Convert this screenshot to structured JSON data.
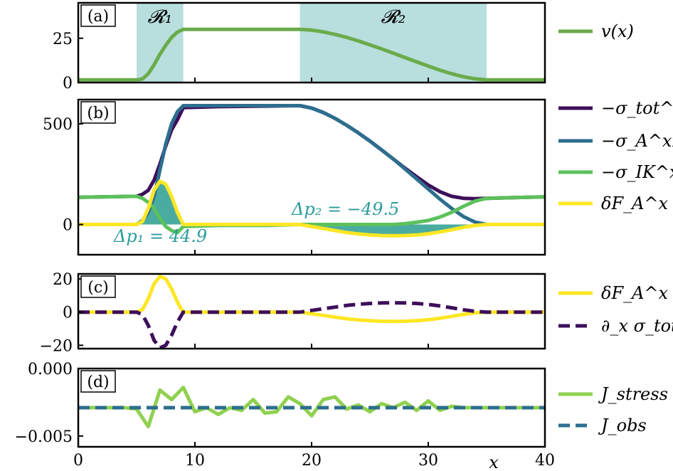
{
  "chart_data": [
    {
      "panel": "(a)",
      "type": "line",
      "ylim": [
        0,
        45
      ],
      "yticks": [
        0,
        25
      ],
      "ytick_labels": [
        "0",
        "25"
      ],
      "regions": [
        {
          "label": "𝓡₁",
          "x_range": [
            5,
            9
          ]
        },
        {
          "label": "𝓡₂",
          "x_range": [
            19,
            35
          ]
        }
      ],
      "region_color": "#b8dede",
      "series": [
        {
          "name": "v(x)",
          "color": "#6aab4a",
          "x": [
            0,
            5,
            5.5,
            6,
            6.5,
            7,
            7.5,
            8,
            8.5,
            9,
            12,
            16,
            19,
            20,
            21,
            22,
            23,
            24,
            25,
            26,
            27,
            28,
            29,
            30,
            31,
            32,
            33,
            34,
            35,
            37,
            40
          ],
          "values": [
            1.5,
            1.5,
            2,
            5,
            10,
            16,
            21,
            25.5,
            28.5,
            30,
            30,
            30,
            30,
            29.6,
            28.6,
            27.2,
            25.5,
            23.5,
            21.3,
            19,
            16.6,
            14.1,
            11.7,
            9.3,
            7.0,
            5.0,
            3.3,
            2.1,
            1.5,
            1.5,
            1.5
          ]
        }
      ]
    },
    {
      "panel": "(b)",
      "type": "line",
      "ylim": [
        -150,
        620
      ],
      "yticks": [
        0,
        500
      ],
      "ytick_labels": [
        "0",
        "500"
      ],
      "series": [
        {
          "name": "−σ_tot^xx",
          "color": "#3d0f5a",
          "x": [
            0,
            5,
            5.5,
            6,
            6.5,
            7,
            7.5,
            8,
            8.5,
            9,
            12,
            16,
            19,
            20,
            21,
            22,
            23,
            24,
            25,
            26,
            27,
            28,
            29,
            30,
            31,
            32,
            33,
            34,
            35,
            37,
            40
          ],
          "values": [
            135,
            140,
            150,
            170,
            220,
            300,
            390,
            470,
            520,
            580,
            585,
            588,
            590,
            578,
            556,
            527,
            493,
            455,
            414,
            370,
            325,
            280,
            237,
            196,
            163,
            140,
            130,
            128,
            130,
            133,
            137
          ]
        },
        {
          "name": "−σ_A^xx",
          "color": "#2d6e8e",
          "x": [
            0,
            5,
            5.5,
            6,
            6.5,
            7,
            7.5,
            8,
            8.5,
            9,
            12,
            16,
            19,
            20,
            21,
            22,
            23,
            24,
            25,
            26,
            27,
            28,
            29,
            30,
            31,
            32,
            33,
            34,
            35,
            37,
            40
          ],
          "values": [
            0,
            0,
            20,
            60,
            140,
            270,
            400,
            500,
            560,
            590,
            590,
            590,
            590,
            578,
            556,
            527,
            493,
            455,
            414,
            370,
            325,
            276,
            226,
            176,
            126,
            80,
            40,
            12,
            0,
            0,
            0
          ]
        },
        {
          "name": "−σ_IK^xx",
          "color": "#5cc15b",
          "x": [
            0,
            5,
            5.5,
            6,
            6.5,
            7,
            7.5,
            8,
            8.5,
            9,
            12,
            16,
            19,
            20,
            21,
            22,
            23,
            24,
            25,
            26,
            27,
            28,
            29,
            30,
            31,
            32,
            33,
            34,
            35,
            37,
            40
          ],
          "values": [
            135,
            140,
            130,
            110,
            80,
            30,
            -10,
            -30,
            -40,
            -10,
            -5,
            -5,
            0,
            0,
            0,
            0,
            0,
            0,
            0,
            0,
            0,
            4,
            11,
            20,
            37,
            60,
            90,
            116,
            130,
            133,
            137
          ]
        },
        {
          "name": "δF_A^x",
          "color": "#fde725",
          "x": [
            0,
            5,
            5.5,
            6,
            6.5,
            7,
            7.5,
            8,
            8.5,
            9,
            12,
            16,
            19,
            20,
            21,
            22,
            23,
            24,
            25,
            26,
            27,
            28,
            29,
            30,
            31,
            32,
            33,
            34,
            35,
            37,
            40
          ],
          "values": [
            0,
            0,
            15,
            80,
            170,
            215,
            200,
            140,
            60,
            0,
            0,
            0,
            0,
            -10,
            -20,
            -30,
            -40,
            -47,
            -52,
            -55,
            -56,
            -55,
            -52,
            -46,
            -37,
            -26,
            -14,
            -5,
            0,
            0,
            0
          ]
        }
      ],
      "annotations": [
        {
          "text": "Δp₁ = 44.9"
        },
        {
          "text": "Δp₂ = −49.5"
        }
      ],
      "fill_color": "#2a9d8f"
    },
    {
      "panel": "(c)",
      "type": "line",
      "ylim": [
        -22,
        23
      ],
      "yticks": [
        -20,
        0,
        20
      ],
      "ytick_labels": [
        "−20",
        "0",
        "20"
      ],
      "series": [
        {
          "name": "δF_A^x",
          "color": "#fde725",
          "x": [
            0,
            5,
            5.5,
            6,
            6.5,
            7,
            7.5,
            8,
            8.5,
            9,
            12,
            16,
            19,
            20,
            21,
            22,
            23,
            24,
            25,
            26,
            27,
            28,
            29,
            30,
            31,
            32,
            33,
            34,
            35,
            37,
            40
          ],
          "values": [
            0,
            0,
            1.5,
            8,
            17,
            21.5,
            20,
            14,
            6,
            0,
            0,
            0,
            0,
            -1,
            -2,
            -3,
            -4,
            -4.7,
            -5.2,
            -5.5,
            -5.6,
            -5.5,
            -5.2,
            -4.6,
            -3.7,
            -2.6,
            -1.4,
            -0.5,
            0,
            0,
            0
          ]
        },
        {
          "name": "∂_x σ_tot^xx",
          "color": "#3d0f5a",
          "dashed": true,
          "x": [
            0,
            5,
            5.5,
            6,
            6.5,
            7,
            7.5,
            8,
            8.5,
            9,
            12,
            16,
            19,
            20,
            21,
            22,
            23,
            24,
            25,
            26,
            27,
            28,
            29,
            30,
            31,
            32,
            33,
            34,
            35,
            37,
            40
          ],
          "values": [
            0,
            0,
            -1.5,
            -8,
            -17,
            -21.5,
            -20,
            -14,
            -6,
            0,
            0,
            0,
            0,
            1,
            2,
            3,
            4,
            4.7,
            5.2,
            5.5,
            5.6,
            5.5,
            5.2,
            4.6,
            3.7,
            2.6,
            1.4,
            0.5,
            0,
            0,
            0
          ]
        }
      ]
    },
    {
      "panel": "(d)",
      "type": "line",
      "ylim": [
        -0.0058,
        0.0
      ],
      "yticks": [
        -0.005,
        0.0
      ],
      "ytick_labels": [
        "−0.005",
        "0.000"
      ],
      "series": [
        {
          "name": "J_stress",
          "color": "#8fd14f",
          "x": [
            0,
            1,
            2,
            3,
            4,
            5,
            6,
            7,
            8,
            9,
            10,
            11,
            12,
            13,
            14,
            15,
            16,
            17,
            18,
            19,
            20,
            21,
            22,
            23,
            24,
            25,
            26,
            27,
            28,
            29,
            30,
            31,
            32,
            33,
            34,
            35,
            36,
            37,
            38,
            39,
            40
          ],
          "values": [
            -0.0029,
            -0.0029,
            -0.0029,
            -0.0029,
            -0.0029,
            -0.003,
            -0.0043,
            -0.0016,
            -0.0023,
            -0.0014,
            -0.0032,
            -0.0029,
            -0.0034,
            -0.0029,
            -0.0031,
            -0.0023,
            -0.0033,
            -0.0032,
            -0.0021,
            -0.0026,
            -0.0035,
            -0.0023,
            -0.0021,
            -0.003,
            -0.0027,
            -0.0032,
            -0.0026,
            -0.0029,
            -0.0025,
            -0.0031,
            -0.0024,
            -0.0031,
            -0.0028,
            -0.0029,
            -0.0029,
            -0.0029,
            -0.0029,
            -0.0029,
            -0.0029,
            -0.0029,
            -0.0029
          ]
        },
        {
          "name": "J_obs",
          "color": "#2d6e8e",
          "dashed": true,
          "x": [
            0,
            40
          ],
          "values": [
            -0.0029,
            -0.0029
          ]
        }
      ]
    }
  ],
  "shared_x": {
    "xlim": [
      0,
      40
    ],
    "xticks": [
      0,
      10,
      20,
      30,
      40
    ],
    "xtick_labels": [
      "0",
      "10",
      "20",
      "30",
      "40"
    ],
    "xlabel": "x"
  },
  "legends": [
    {
      "items": [
        {
          "label": "v(x)",
          "color": "#6aab4a",
          "dashed": false
        }
      ]
    },
    {
      "items": [
        {
          "label": "−σ_tot^xx",
          "color": "#3d0f5a",
          "dashed": false
        },
        {
          "label": "−σ_A^xx",
          "color": "#2d6e8e",
          "dashed": false
        },
        {
          "label": "−σ_IK^xx",
          "color": "#5cc15b",
          "dashed": false
        },
        {
          "label": "δF_A^x",
          "color": "#fde725",
          "dashed": false
        }
      ]
    },
    {
      "items": [
        {
          "label": "δF_A^x",
          "color": "#fde725",
          "dashed": false
        },
        {
          "label": "∂_x σ_tot^xx",
          "color": "#3d0f5a",
          "dashed": true
        }
      ]
    },
    {
      "items": [
        {
          "label": "J_stress",
          "color": "#8fd14f",
          "dashed": false
        },
        {
          "label": "J_obs",
          "color": "#2d6e8e",
          "dashed": true
        }
      ]
    }
  ]
}
